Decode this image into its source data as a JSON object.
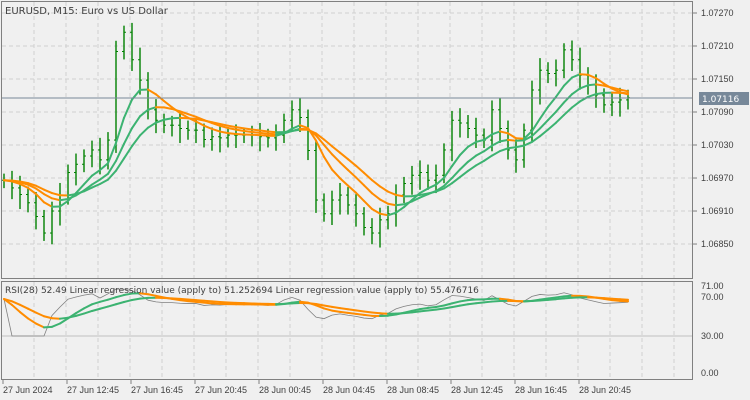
{
  "header": {
    "title": "EURUSD, M15:  Euro vs US Dollar"
  },
  "subwindow": {
    "label": "RSI(28) 52.49 Linear regression value (apply to) 51.252694 Linear regression value (apply to) 55.476716"
  },
  "colors": {
    "background": "#f0f0f0",
    "bars": "#008000",
    "rising": "#3cb371",
    "falling": "#ff8c00",
    "grid": "#d0d0d0",
    "price_line": "#778899",
    "rsi": "#808080"
  },
  "chart_data": [
    {
      "type": "bar",
      "title": "EURUSD, M15:  Euro vs US Dollar",
      "current_price": "1.07116",
      "yticks": [
        "1.07270",
        "1.07210",
        "1.07150",
        "1.07090",
        "1.07030",
        "1.06970",
        "1.06910",
        "1.06850"
      ],
      "ylim": [
        1.0681,
        1.0729
      ],
      "xticks": [
        "27 Jun 2024",
        "27 Jun 12:45",
        "27 Jun 16:45",
        "27 Jun 20:45",
        "28 Jun 00:45",
        "28 Jun 04:45",
        "28 Jun 08:45",
        "28 Jun 12:45",
        "28 Jun 16:45",
        "28 Jun 20:45"
      ],
      "grid": true,
      "closes": [
        1.06966,
        1.06952,
        1.0694,
        1.06925,
        1.069,
        1.0687,
        1.0691,
        1.06939,
        1.0698,
        1.06995,
        1.0701,
        1.07021,
        1.07003,
        1.07039,
        1.072,
        1.07235,
        1.07185,
        1.07148,
        1.07094,
        1.07075,
        1.07066,
        1.07066,
        1.0706,
        1.07057,
        1.07057,
        1.0704,
        1.07045,
        1.07043,
        1.07048,
        1.07048,
        1.07048,
        1.07048,
        1.07045,
        1.07043,
        1.07048,
        1.07075,
        1.07094,
        1.0708,
        1.0702,
        1.0693,
        1.06905,
        1.0693,
        1.06939,
        1.06921,
        1.06905,
        1.0688,
        1.0687,
        1.06894,
        1.06905,
        1.06939,
        1.0696,
        1.06975,
        1.0698,
        1.06966,
        1.06975,
        1.07021,
        1.07075,
        1.0707,
        1.0706,
        1.07048,
        1.07039,
        1.07094,
        1.0706,
        1.07021,
        1.07003,
        1.07057,
        1.0713,
        1.07166,
        1.0716,
        1.07166,
        1.07203,
        1.07185,
        1.07157,
        1.07139,
        1.07121,
        1.07103,
        1.07108,
        1.07112,
        1.07116
      ]
    },
    {
      "type": "line",
      "title": "RSI(28) 52.49 Linear regression value (apply to) 51.252694 Linear regression value (apply to) 55.476716",
      "yticks": [
        "71.00",
        "70.00",
        "30.00",
        "0.00"
      ],
      "ylim": [
        0,
        71
      ],
      "series": [
        {
          "name": "RSI(28)",
          "last": 52.49
        },
        {
          "name": "Linear regression value (apply to)",
          "last": 51.252694
        },
        {
          "name": "Linear regression value (apply to)",
          "last": 55.476716
        }
      ]
    }
  ]
}
